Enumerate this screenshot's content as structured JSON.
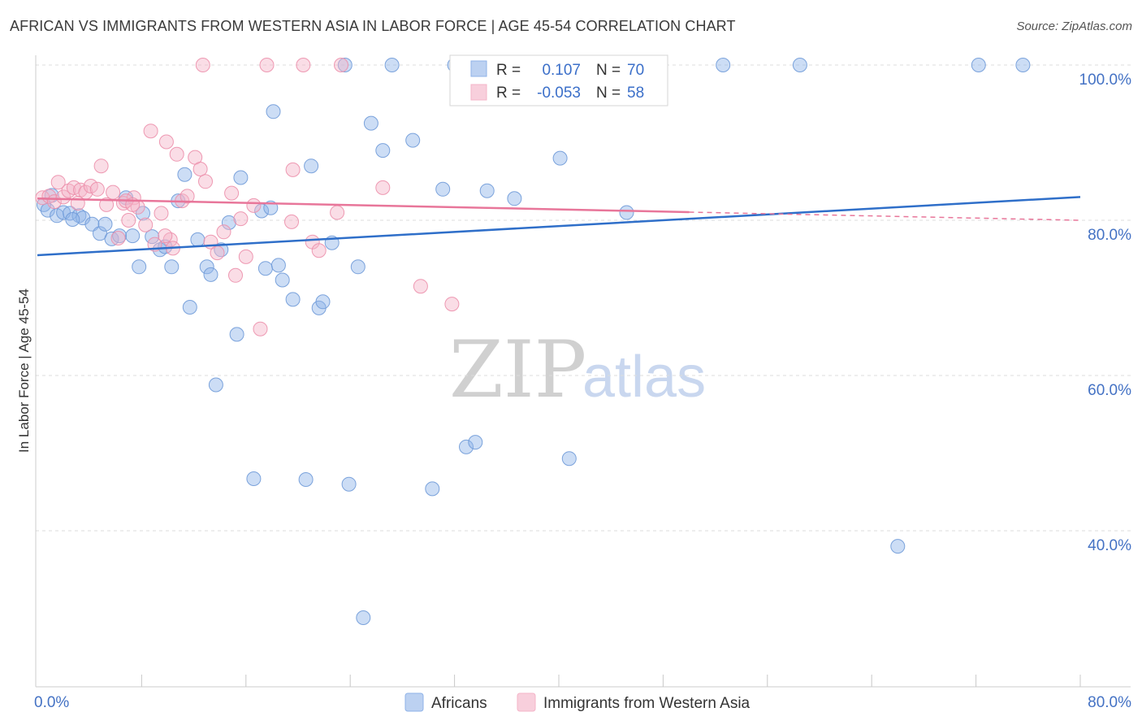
{
  "header": {
    "title": "AFRICAN VS IMMIGRANTS FROM WESTERN ASIA IN LABOR FORCE | AGE 45-54 CORRELATION CHART",
    "source": "Source: ZipAtlas.com"
  },
  "chart_data": {
    "type": "scatter",
    "ylabel": "In Labor Force | Age 45-54",
    "x_tick_labels": [
      "0.0%",
      "80.0%"
    ],
    "y_tick_labels": [
      "100.0%",
      "80.0%",
      "60.0%",
      "40.0%"
    ],
    "y_tick_values": [
      100,
      80,
      60,
      40
    ],
    "xlim": [
      0,
      80
    ],
    "ylim": [
      20,
      101
    ],
    "grid": true,
    "legend_placement": "top-center",
    "watermark": {
      "zip": "ZIP",
      "atlas": "atlas"
    },
    "stats": [
      {
        "r_label": "R =",
        "r_value": "0.107",
        "n_label": "N =",
        "n_value": "70"
      },
      {
        "r_label": "R =",
        "r_value": "-0.053",
        "n_label": "N =",
        "n_value": "58"
      }
    ],
    "series": [
      {
        "name": "Africans",
        "color": "#8fb3e8",
        "edge": "#6f9ad8",
        "trend_color": "#2f6fc9",
        "trend": {
          "x0": 0,
          "y0": 75.5,
          "x1": 80,
          "y1": 83.0,
          "solid_to": 80
        },
        "points": [
          [
            0.5,
            82.0
          ],
          [
            0.8,
            81.3
          ],
          [
            1.5,
            80.6
          ],
          [
            2.0,
            81.0
          ],
          [
            2.5,
            80.9
          ],
          [
            3.2,
            80.6
          ],
          [
            3.5,
            80.3
          ],
          [
            4.2,
            79.5
          ],
          [
            4.8,
            78.3
          ],
          [
            5.2,
            79.5
          ],
          [
            5.7,
            77.6
          ],
          [
            6.3,
            78.0
          ],
          [
            6.8,
            82.9
          ],
          [
            7.3,
            78.0
          ],
          [
            7.8,
            74.0
          ],
          [
            8.1,
            80.9
          ],
          [
            8.8,
            77.9
          ],
          [
            9.4,
            76.2
          ],
          [
            9.8,
            76.6
          ],
          [
            10.3,
            74.0
          ],
          [
            10.8,
            82.5
          ],
          [
            11.3,
            85.9
          ],
          [
            11.7,
            68.8
          ],
          [
            12.3,
            77.5
          ],
          [
            13.0,
            74.0
          ],
          [
            13.3,
            73.0
          ],
          [
            13.7,
            58.8
          ],
          [
            14.1,
            76.2
          ],
          [
            14.7,
            79.7
          ],
          [
            15.3,
            65.3
          ],
          [
            15.6,
            85.5
          ],
          [
            16.6,
            46.7
          ],
          [
            17.2,
            81.2
          ],
          [
            17.5,
            73.8
          ],
          [
            17.9,
            81.6
          ],
          [
            18.1,
            94.0
          ],
          [
            18.5,
            74.2
          ],
          [
            18.8,
            72.3
          ],
          [
            19.6,
            69.8
          ],
          [
            20.6,
            46.6
          ],
          [
            21.0,
            87.0
          ],
          [
            21.6,
            68.7
          ],
          [
            21.9,
            69.5
          ],
          [
            22.6,
            77.1
          ],
          [
            23.6,
            100.0
          ],
          [
            23.9,
            46.0
          ],
          [
            24.6,
            74.0
          ],
          [
            25.0,
            28.8
          ],
          [
            25.6,
            92.5
          ],
          [
            26.5,
            89.0
          ],
          [
            28.8,
            90.3
          ],
          [
            30.3,
            45.4
          ],
          [
            31.1,
            84.0
          ],
          [
            32.9,
            50.8
          ],
          [
            33.6,
            51.4
          ],
          [
            34.5,
            83.8
          ],
          [
            36.6,
            82.8
          ],
          [
            40.1,
            88.0
          ],
          [
            40.8,
            49.3
          ],
          [
            45.2,
            81.0
          ],
          [
            52.6,
            100.0
          ],
          [
            58.5,
            100.0
          ],
          [
            72.2,
            100.0
          ],
          [
            75.6,
            100.0
          ],
          [
            32.0,
            100.0
          ],
          [
            27.2,
            100.0
          ],
          [
            39.2,
            100.0
          ],
          [
            1.1,
            83.2
          ],
          [
            2.7,
            80.1
          ],
          [
            66.0,
            38.0
          ]
        ]
      },
      {
        "name": "Immigrants from Western Asia",
        "color": "#f4b4c8",
        "edge": "#ec8fab",
        "trend_color": "#e8769a",
        "trend": {
          "x0": 0,
          "y0": 82.8,
          "x1": 80,
          "y1": 80.0,
          "solid_to": 50
        },
        "points": [
          [
            0.4,
            82.9
          ],
          [
            0.9,
            83.1
          ],
          [
            1.3,
            82.4
          ],
          [
            1.6,
            84.9
          ],
          [
            2.0,
            83.0
          ],
          [
            2.4,
            83.8
          ],
          [
            2.8,
            84.2
          ],
          [
            3.3,
            83.9
          ],
          [
            3.7,
            83.6
          ],
          [
            4.1,
            84.4
          ],
          [
            4.6,
            84.0
          ],
          [
            4.9,
            87.0
          ],
          [
            5.3,
            82.0
          ],
          [
            5.8,
            83.6
          ],
          [
            6.2,
            77.7
          ],
          [
            6.6,
            82.2
          ],
          [
            7.0,
            80.0
          ],
          [
            7.4,
            82.9
          ],
          [
            7.7,
            81.7
          ],
          [
            8.3,
            79.4
          ],
          [
            8.7,
            91.5
          ],
          [
            9.0,
            76.9
          ],
          [
            9.5,
            80.9
          ],
          [
            9.9,
            90.1
          ],
          [
            10.2,
            77.5
          ],
          [
            10.7,
            88.5
          ],
          [
            11.1,
            82.5
          ],
          [
            11.5,
            83.1
          ],
          [
            12.1,
            88.1
          ],
          [
            12.5,
            86.6
          ],
          [
            12.9,
            85.0
          ],
          [
            13.3,
            77.2
          ],
          [
            13.8,
            75.8
          ],
          [
            14.3,
            78.5
          ],
          [
            14.9,
            83.5
          ],
          [
            15.6,
            80.2
          ],
          [
            16.0,
            75.3
          ],
          [
            16.6,
            81.9
          ],
          [
            17.1,
            66.0
          ],
          [
            17.6,
            100.0
          ],
          [
            19.5,
            79.8
          ],
          [
            19.6,
            86.5
          ],
          [
            21.1,
            77.2
          ],
          [
            21.6,
            76.1
          ],
          [
            23.0,
            81.0
          ],
          [
            26.5,
            84.2
          ],
          [
            29.4,
            71.5
          ],
          [
            31.8,
            69.2
          ],
          [
            37.9,
            100.0
          ],
          [
            12.7,
            100.0
          ],
          [
            23.3,
            100.0
          ],
          [
            3.1,
            82.2
          ],
          [
            6.8,
            82.5
          ],
          [
            10.4,
            76.4
          ],
          [
            15.2,
            72.9
          ],
          [
            7.3,
            82.0
          ],
          [
            9.8,
            78.0
          ],
          [
            20.4,
            100.0
          ]
        ]
      }
    ]
  }
}
